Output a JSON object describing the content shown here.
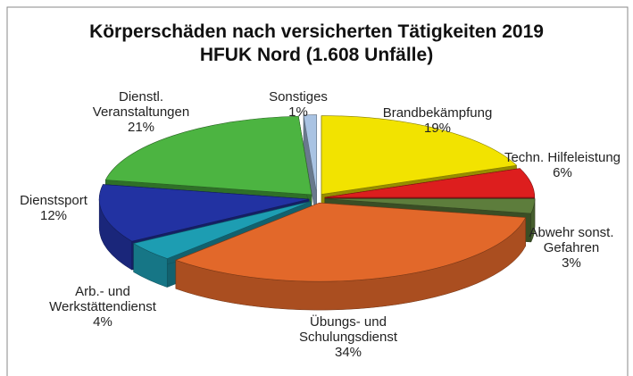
{
  "chart_data": {
    "type": "pie3d",
    "title": "Körperschäden nach versicherten Tätigkeiten 2019",
    "subtitle": "HFUK Nord (1.608 Unfälle)",
    "categories": [
      "Brandbekämpfung",
      "Techn. Hilfeleistung",
      "Abwehr sonst. Gefahren",
      "Übungs- und Schulungsdienst",
      "Arb.- und Werkstättendienst",
      "Dienstsport",
      "Dienstl. Veranstaltungen",
      "Sonstiges"
    ],
    "values": [
      19,
      6,
      3,
      34,
      4,
      12,
      21,
      1
    ],
    "value_labels": [
      "19%",
      "6%",
      "3%",
      "34%",
      "4%",
      "12%",
      "21%",
      "1%"
    ],
    "colors": [
      "#f2e300",
      "#dd1e1e",
      "#5d7d3c",
      "#e2682a",
      "#1d9db2",
      "#2232a2",
      "#4cb441",
      "#a9c3e3"
    ]
  }
}
